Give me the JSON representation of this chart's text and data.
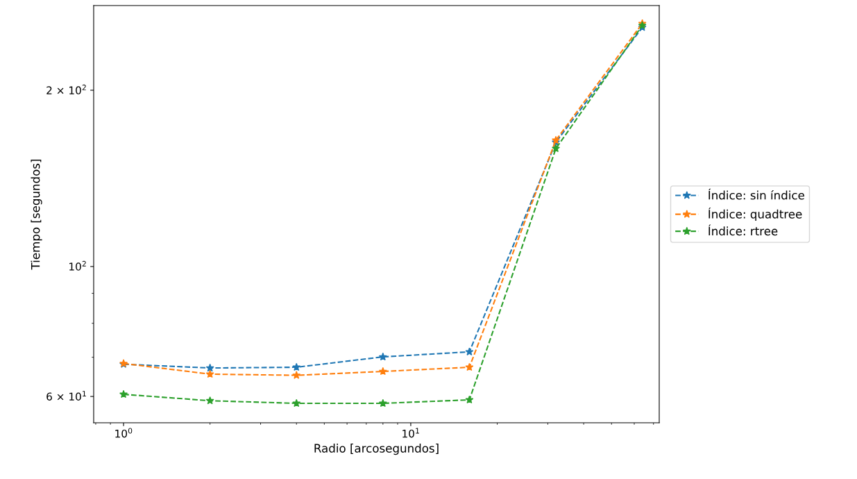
{
  "chart_data": {
    "type": "line",
    "xlabel": "Radio [arcosegundos]",
    "ylabel": "Tiempo [segundos]",
    "log": "xy",
    "x": [
      1,
      2,
      4,
      8,
      16,
      32,
      64
    ],
    "series": [
      {
        "name": "Índice: sin índice",
        "color": "#1f77b4",
        "values": [
          68.1,
          67.1,
          67.3,
          70.1,
          71.5,
          163,
          256
        ]
      },
      {
        "name": "Índice: quadtree",
        "color": "#ff7f0e",
        "values": [
          68.3,
          65.5,
          65.2,
          66.2,
          67.3,
          164.3,
          260
        ]
      },
      {
        "name": "Índice: rtree",
        "color": "#2ca02c",
        "values": [
          60.5,
          59.0,
          58.4,
          58.4,
          59.2,
          159,
          258
        ]
      }
    ],
    "xlim": [
      0.787,
      73.3
    ],
    "ylim": [
      54.1,
      279
    ],
    "xticks": [
      {
        "value": 1,
        "label": "10$^{0}$"
      },
      {
        "value": 10,
        "label": "10$^{1}$"
      }
    ],
    "yticks": [
      {
        "value": 60,
        "label": "6 × 10$^{1}$"
      },
      {
        "value": 100,
        "label": "10$^{2}$"
      },
      {
        "value": 200,
        "label": "2 × 10$^{2}$"
      }
    ],
    "marker": "star",
    "line_style": "dashed",
    "legend": "right",
    "grid": false
  }
}
